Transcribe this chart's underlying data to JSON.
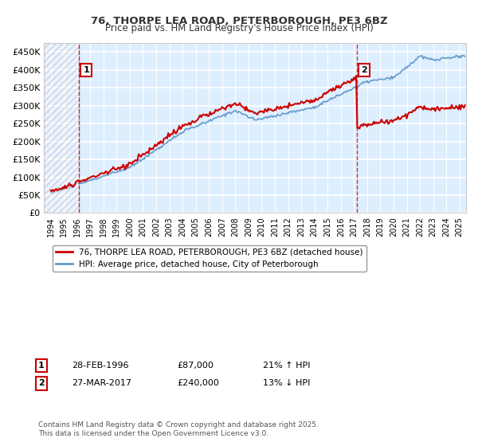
{
  "title": "76, THORPE LEA ROAD, PETERBOROUGH, PE3 6BZ",
  "subtitle": "Price paid vs. HM Land Registry's House Price Index (HPI)",
  "ylabel_ticks": [
    "£0",
    "£50K",
    "£100K",
    "£150K",
    "£200K",
    "£250K",
    "£300K",
    "£350K",
    "£400K",
    "£450K"
  ],
  "ytick_values": [
    0,
    50000,
    100000,
    150000,
    200000,
    250000,
    300000,
    350000,
    400000,
    450000
  ],
  "ylim": [
    0,
    475000
  ],
  "xlim_start": 1993.5,
  "xlim_end": 2025.5,
  "sale1_date": "28-FEB-1996",
  "sale1_price": 87000,
  "sale1_year": 1996.16,
  "sale2_date": "27-MAR-2017",
  "sale2_price": 240000,
  "sale2_year": 2017.23,
  "legend_line1": "76, THORPE LEA ROAD, PETERBOROUGH, PE3 6BZ (detached house)",
  "legend_line2": "HPI: Average price, detached house, City of Peterborough",
  "annotation1": "1   28-FEB-1996        £87,000         21% ↑ HPI",
  "annotation2": "2   27-MAR-2017        £240,000       13% ↓ HPI",
  "footer": "Contains HM Land Registry data © Crown copyright and database right 2025.\nThis data is licensed under the Open Government Licence v3.0.",
  "line_red_color": "#cc0000",
  "line_blue_color": "#6699cc",
  "background_color": "#ddeeff",
  "hatch_color": "#bbccdd",
  "grid_color": "#ffffff",
  "title_color": "#333333",
  "marker_box_color": "#cc0000"
}
